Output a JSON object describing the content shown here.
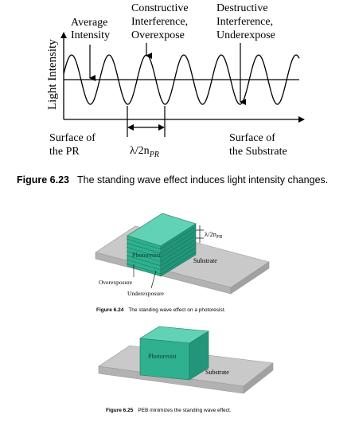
{
  "wave_diagram": {
    "ylabel": "Light Intensity",
    "average_label": [
      "Average",
      "Intensity"
    ],
    "constructive_label": [
      "Constructive",
      "Interference,",
      "Overexpose"
    ],
    "destructive_label": [
      "Destructive",
      "Interference,",
      "Underexpose"
    ],
    "surface_pr_label": [
      "Surface of",
      "the PR"
    ],
    "surface_substrate_label": [
      "Surface of",
      "the Substrate"
    ],
    "period_label": "λ/2n",
    "period_subscript": "PR"
  },
  "figure_6_23": {
    "number": "Figure 6.23",
    "caption": "The standing wave effect induces light intensity changes."
  },
  "figure_6_24": {
    "photoresist_label": "Photoresist",
    "substrate_label": "Substrate",
    "period_label": "λ/2n",
    "period_subscript": "PR",
    "overexposure_label": "Overexposure",
    "underexposure_label": "Underexposure",
    "number": "Figure 6.24",
    "caption": "The standing wave effect on a photoresist."
  },
  "figure_6_25": {
    "photoresist_label": "Photoresist",
    "substrate_label": "Substrate",
    "number": "Figure 6.25",
    "caption": "PEB minimizes the standing wave effect."
  },
  "colors": {
    "resist_front": "#2fb08e",
    "resist_top": "#5fd3b3",
    "resist_side": "#1f8a6e",
    "substrate_top": "#c8c8c8",
    "substrate_side": "#a8a8a8",
    "line": "#000000"
  }
}
